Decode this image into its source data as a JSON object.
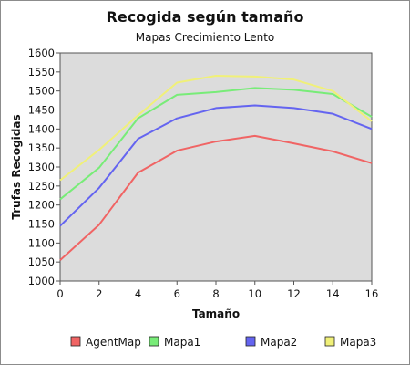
{
  "chart_data": {
    "type": "line",
    "title": "Recogida según tamaño",
    "subtitle": "Mapas Crecimiento Lento",
    "xlabel": "Tamaño",
    "ylabel": "Trufas Recogidas",
    "x": [
      0,
      2,
      4,
      6,
      8,
      10,
      12,
      14,
      16
    ],
    "xlim": [
      0,
      16
    ],
    "ylim": [
      1000,
      1600
    ],
    "xticks": [
      "0",
      "2",
      "4",
      "6",
      "8",
      "10",
      "12",
      "14",
      "16"
    ],
    "yticks": [
      "1000",
      "1050",
      "1100",
      "1150",
      "1200",
      "1250",
      "1300",
      "1350",
      "1400",
      "1450",
      "1500",
      "1550",
      "1600"
    ],
    "grid": false,
    "legend_position": "bottom",
    "plot_background": "#dcdcdc",
    "series": [
      {
        "name": "AgentMap",
        "color": "#f06464",
        "values": [
          1055,
          1148,
          1285,
          1343,
          1367,
          1382,
          1362,
          1341,
          1310
        ]
      },
      {
        "name": "Mapa1",
        "color": "#78ec78",
        "values": [
          1215,
          1298,
          1428,
          1490,
          1497,
          1508,
          1503,
          1492,
          1432
        ]
      },
      {
        "name": "Mapa2",
        "color": "#6464f0",
        "values": [
          1145,
          1245,
          1374,
          1428,
          1455,
          1462,
          1455,
          1440,
          1400
        ]
      },
      {
        "name": "Mapa3",
        "color": "#f0f078",
        "values": [
          1265,
          1345,
          1436,
          1522,
          1540,
          1538,
          1530,
          1500,
          1420
        ]
      }
    ]
  }
}
